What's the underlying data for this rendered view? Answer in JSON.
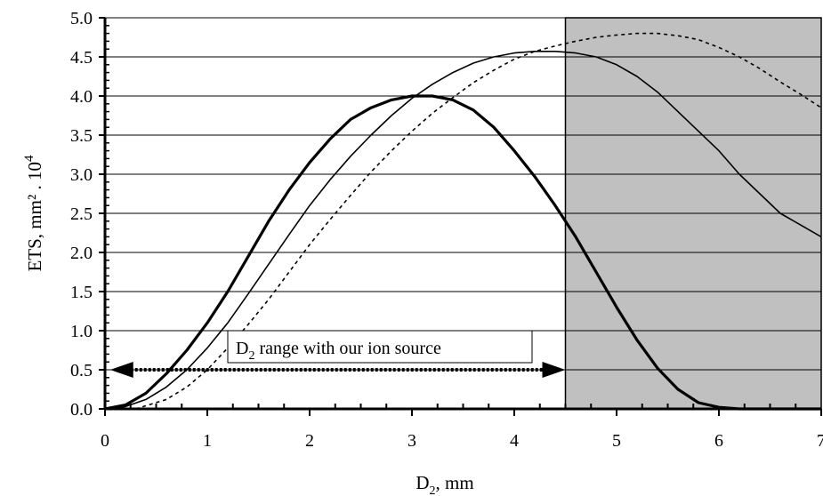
{
  "chart_data": {
    "type": "line",
    "xlabel": {
      "main": "D",
      "sub": "2",
      "rest": ",  mm"
    },
    "ylabel": {
      "main": "ETS,  mm² . 10",
      "sup": "4"
    },
    "xlim": [
      0,
      7
    ],
    "ylim": [
      0,
      5
    ],
    "x_ticks": [
      "0",
      "1",
      "2",
      "3",
      "4",
      "5",
      "6",
      "7"
    ],
    "y_ticks": [
      "0.0",
      "0.5",
      "1.0",
      "1.5",
      "2.0",
      "2.5",
      "3.0",
      "3.5",
      "4.0",
      "4.5",
      "5.0"
    ],
    "grid": "horizontal",
    "shaded_region": {
      "x_from": 4.5,
      "x_to": 7,
      "color": "#c0c0c0"
    },
    "series": [
      {
        "style": "thick-solid",
        "x": [
          0,
          0.2,
          0.4,
          0.6,
          0.8,
          1.0,
          1.2,
          1.4,
          1.6,
          1.8,
          2.0,
          2.2,
          2.4,
          2.6,
          2.8,
          3.0,
          3.2,
          3.4,
          3.6,
          3.8,
          4.0,
          4.2,
          4.4,
          4.6,
          4.8,
          5.0,
          5.2,
          5.4,
          5.6,
          5.8,
          6.0,
          6.2,
          6.4,
          7.0
        ],
        "y": [
          0,
          0.05,
          0.2,
          0.45,
          0.75,
          1.1,
          1.5,
          1.95,
          2.4,
          2.8,
          3.15,
          3.45,
          3.7,
          3.85,
          3.95,
          4.0,
          4.0,
          3.95,
          3.82,
          3.6,
          3.3,
          2.97,
          2.6,
          2.2,
          1.75,
          1.3,
          0.88,
          0.52,
          0.25,
          0.08,
          0.02,
          0.0,
          0.0,
          0.0
        ]
      },
      {
        "style": "thin-solid",
        "x": [
          0,
          0.2,
          0.4,
          0.6,
          0.8,
          1.0,
          1.2,
          1.4,
          1.6,
          1.8,
          2.0,
          2.2,
          2.4,
          2.6,
          2.8,
          3.0,
          3.2,
          3.4,
          3.6,
          3.8,
          4.0,
          4.2,
          4.4,
          4.6,
          4.8,
          5.0,
          5.2,
          5.4,
          5.6,
          5.8,
          6.0,
          6.2,
          6.4,
          6.6,
          6.8,
          7.0
        ],
        "y": [
          0,
          0.03,
          0.12,
          0.28,
          0.5,
          0.78,
          1.1,
          1.47,
          1.85,
          2.23,
          2.6,
          2.93,
          3.23,
          3.5,
          3.75,
          3.97,
          4.15,
          4.3,
          4.42,
          4.5,
          4.55,
          4.57,
          4.57,
          4.55,
          4.5,
          4.4,
          4.25,
          4.05,
          3.8,
          3.55,
          3.3,
          3.0,
          2.75,
          2.5,
          2.35,
          2.2
        ]
      },
      {
        "style": "dotted",
        "x": [
          0.3,
          0.6,
          0.8,
          1.0,
          1.2,
          1.4,
          1.6,
          1.8,
          2.0,
          2.2,
          2.4,
          2.6,
          2.8,
          3.0,
          3.2,
          3.4,
          3.6,
          3.8,
          4.0,
          4.2,
          4.4,
          4.6,
          4.8,
          5.0,
          5.2,
          5.4,
          5.6,
          5.8,
          6.0,
          6.2,
          6.4,
          6.6,
          6.8,
          7.0
        ],
        "y": [
          0,
          0.12,
          0.28,
          0.5,
          0.78,
          1.08,
          1.4,
          1.75,
          2.1,
          2.42,
          2.73,
          3.03,
          3.3,
          3.55,
          3.78,
          3.98,
          4.17,
          4.33,
          4.47,
          4.57,
          4.64,
          4.7,
          4.75,
          4.78,
          4.8,
          4.8,
          4.77,
          4.72,
          4.62,
          4.5,
          4.35,
          4.18,
          4.02,
          3.85
        ]
      }
    ],
    "annotation": {
      "text_main": "D",
      "text_sub": "2",
      "text_rest": " range with our ion source",
      "arrow_from": 0.05,
      "arrow_to": 4.5,
      "arrow_y": 0.5
    }
  }
}
